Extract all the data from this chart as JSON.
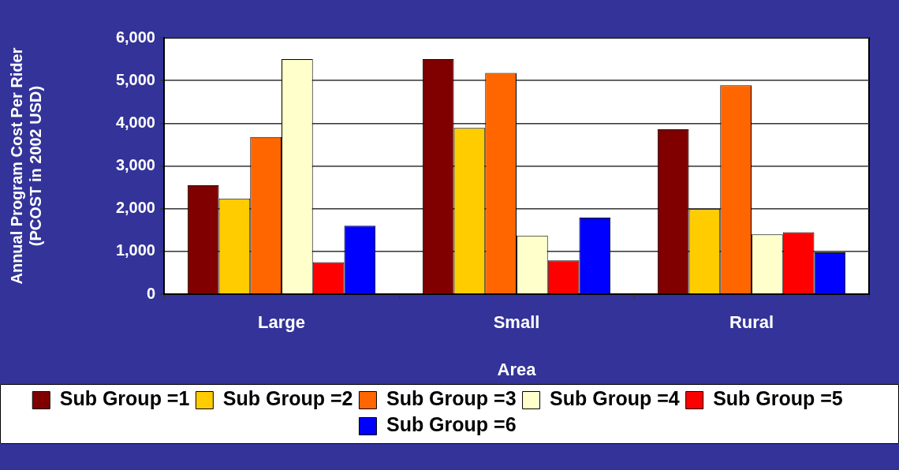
{
  "chart_data": {
    "type": "bar",
    "xlabel": "Area",
    "ylabel": "Annual Program Cost Per Rider (PCOST in 2002 USD)",
    "categories": [
      "Large",
      "Small",
      "Rural"
    ],
    "series": [
      {
        "name": "Sub Group =1",
        "color": "#800000",
        "values": [
          2550,
          5500,
          3860
        ]
      },
      {
        "name": "Sub Group =2",
        "color": "#ffcc00",
        "values": [
          2240,
          3890,
          1990
        ]
      },
      {
        "name": "Sub Group =3",
        "color": "#ff6600",
        "values": [
          3680,
          5180,
          4890
        ]
      },
      {
        "name": "Sub Group =4",
        "color": "#ffffcc",
        "values": [
          5500,
          1370,
          1400
        ]
      },
      {
        "name": "Sub Group =5",
        "color": "#ff0000",
        "values": [
          750,
          790,
          1450
        ]
      },
      {
        "name": "Sub Group =6",
        "color": "#0000ff",
        "values": [
          1600,
          1790,
          980
        ]
      }
    ],
    "ylim": [
      0,
      6000
    ],
    "yticks": [
      0,
      {
        "value": 1000,
        "label": "1,000"
      },
      {
        "value": 2000,
        "label": "2,000"
      },
      {
        "value": 3000,
        "label": "3,000"
      },
      {
        "value": 4000,
        "label": "4,000"
      },
      {
        "value": 5000,
        "label": "5,000"
      },
      {
        "value": 6000,
        "label": "6,000"
      }
    ],
    "grid": "y",
    "legend": "bottom"
  }
}
